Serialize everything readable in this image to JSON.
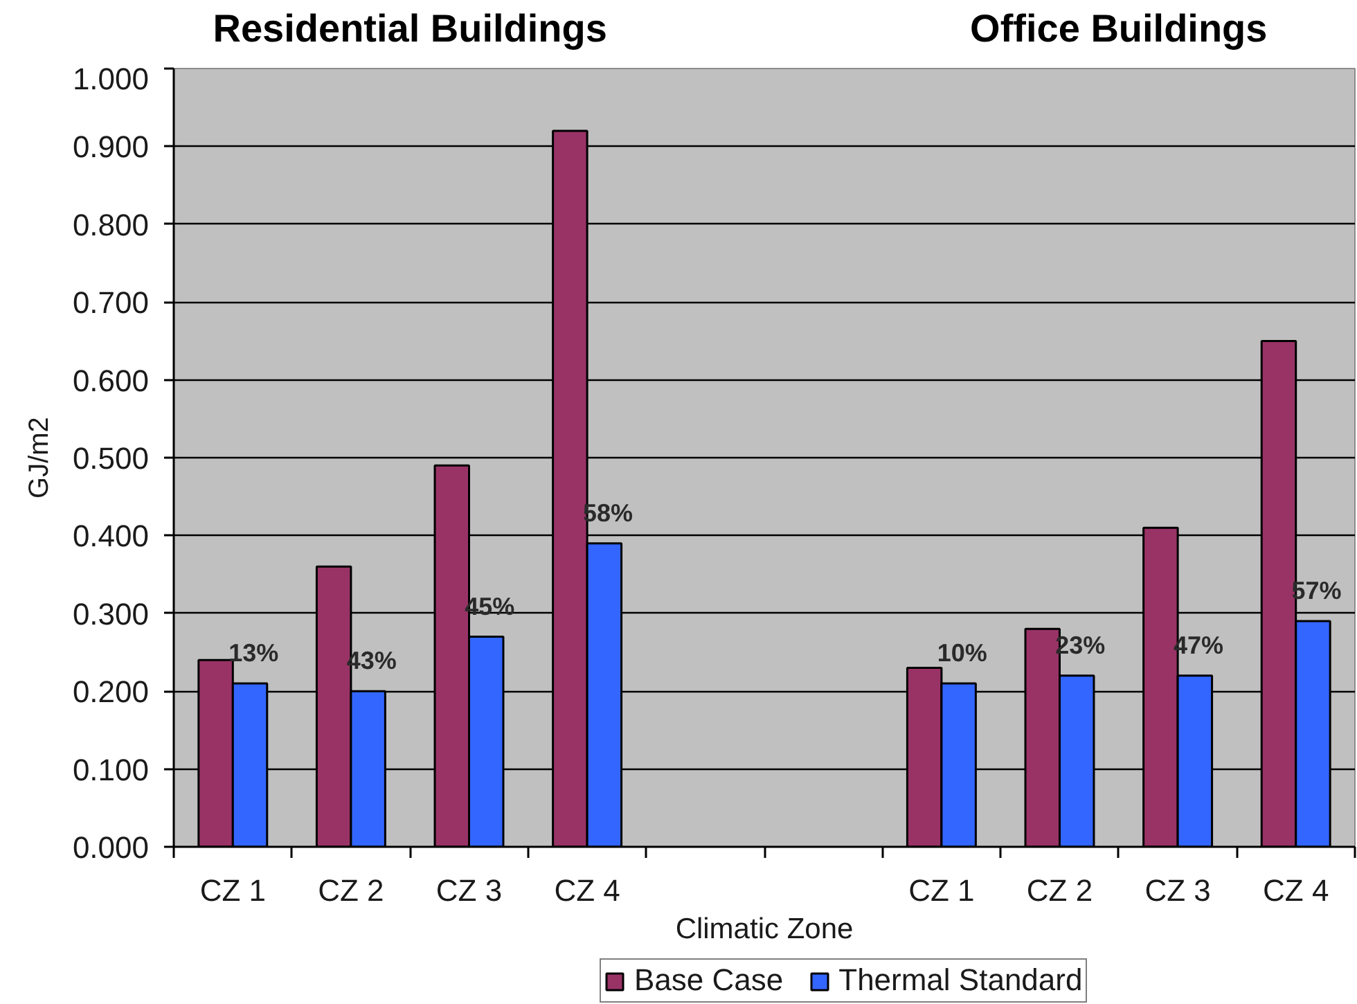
{
  "chart_data": {
    "type": "bar",
    "categories": [
      "CZ 1",
      "CZ 2",
      "CZ 3",
      "CZ 4",
      null,
      null,
      "CZ 1",
      "CZ 2",
      "CZ 3",
      "CZ 4"
    ],
    "series": [
      {
        "name": "Base Case",
        "color": "#993366",
        "values": [
          0.24,
          0.36,
          0.49,
          0.92,
          null,
          null,
          0.23,
          0.28,
          0.41,
          0.65
        ]
      },
      {
        "name": "Thermal Standard",
        "color": "#3366ff",
        "values": [
          0.21,
          0.2,
          0.27,
          0.39,
          null,
          null,
          0.21,
          0.22,
          0.22,
          0.29
        ]
      }
    ],
    "ylim": [
      0,
      1
    ],
    "yticks": [
      {
        "value": 0,
        "label": "0.000"
      },
      {
        "value": 0.1,
        "label": "0.100"
      },
      {
        "value": 0.2,
        "label": "0.200"
      },
      {
        "value": 0.3,
        "label": "0.300"
      },
      {
        "value": 0.4,
        "label": "0.400"
      },
      {
        "value": 0.5,
        "label": "0.500"
      },
      {
        "value": 0.6,
        "label": "0.600"
      },
      {
        "value": 0.7,
        "label": "0.700"
      },
      {
        "value": 0.8,
        "label": "0.800"
      },
      {
        "value": 0.9,
        "label": "0.900"
      },
      {
        "value": 1,
        "label": "1.000"
      }
    ],
    "xlabel": "Climatic Zone",
    "ylabel": "GJ/m2",
    "annotations": [
      "Residential Buildings",
      "Office Buildings",
      "13%",
      "43%",
      "45%",
      "58%",
      "10%",
      "23%",
      "47%",
      "57%"
    ],
    "grid": "y",
    "legend": "bottom"
  }
}
